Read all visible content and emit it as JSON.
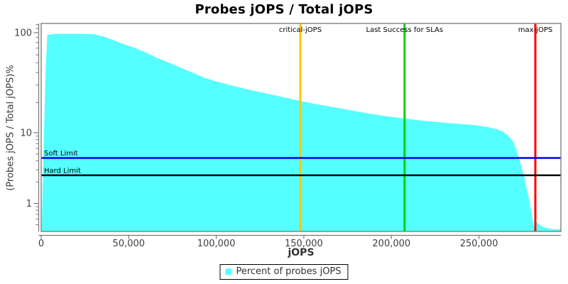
{
  "title": "Probes jOPS / Total jOPS",
  "chart_data": {
    "type": "area",
    "title": "Probes jOPS / Total jOPS",
    "xlabel": "jOPS",
    "ylabel": "(Probes jOPS / Total jOPS)%",
    "x_range": [
      0,
      296800
    ],
    "y_scale": "log",
    "y_range": [
      0.4,
      123
    ],
    "grid": false,
    "legend_position": "bottom",
    "x_ticks": [
      {
        "value": 0,
        "label": "0"
      },
      {
        "value": 50000,
        "label": "50,000"
      },
      {
        "value": 100000,
        "label": "100,000"
      },
      {
        "value": 150000,
        "label": "150,000"
      },
      {
        "value": 200000,
        "label": "200,000"
      },
      {
        "value": 250000,
        "label": "250,000"
      }
    ],
    "y_ticks": [
      {
        "value": 100,
        "label": "100"
      },
      {
        "value": 10,
        "label": "10"
      },
      {
        "value": 1,
        "label": "1"
      }
    ],
    "y_minor_ticks": [
      120,
      110,
      90,
      80,
      70,
      60,
      50,
      40,
      30,
      20,
      9,
      8,
      7,
      6,
      5,
      4,
      3,
      2,
      0.9,
      0.8,
      0.7,
      0.6,
      0.5
    ],
    "series": [
      {
        "name": "Percent of probes jOPS",
        "color": "#55FFFF",
        "points": [
          [
            300,
            0.45
          ],
          [
            1500,
            8
          ],
          [
            2500,
            40
          ],
          [
            3500,
            95
          ],
          [
            8000,
            97.5
          ],
          [
            20000,
            97.5
          ],
          [
            30000,
            96.5
          ],
          [
            36000,
            91
          ],
          [
            40000,
            86
          ],
          [
            46000,
            78
          ],
          [
            53000,
            71
          ],
          [
            60000,
            63
          ],
          [
            66000,
            56
          ],
          [
            73000,
            50
          ],
          [
            80000,
            44.5
          ],
          [
            87000,
            39.5
          ],
          [
            93000,
            35.5
          ],
          [
            100000,
            32.5
          ],
          [
            110000,
            29.3
          ],
          [
            120000,
            26.6
          ],
          [
            130000,
            24.4
          ],
          [
            140000,
            22.3
          ],
          [
            148000,
            20.8
          ],
          [
            158000,
            19.2
          ],
          [
            170000,
            17.6
          ],
          [
            185000,
            15.8
          ],
          [
            196000,
            14.7
          ],
          [
            207000,
            13.9
          ],
          [
            218000,
            13.2
          ],
          [
            230000,
            12.6
          ],
          [
            240000,
            12.2
          ],
          [
            248000,
            11.9
          ],
          [
            255000,
            11.4
          ],
          [
            260000,
            10.9
          ],
          [
            264000,
            10.2
          ],
          [
            267000,
            8.9
          ],
          [
            269500,
            7.6
          ],
          [
            271500,
            5.6
          ],
          [
            273000,
            4.2
          ],
          [
            274500,
            3.1
          ],
          [
            276000,
            2.3
          ],
          [
            277500,
            1.5
          ],
          [
            279000,
            1.0
          ],
          [
            280500,
            0.62
          ],
          [
            281500,
            0.47
          ],
          [
            282200,
            0.44
          ],
          [
            283000,
            0.55
          ],
          [
            284500,
            0.5
          ],
          [
            287000,
            0.46
          ],
          [
            290000,
            0.44
          ],
          [
            293000,
            0.43
          ],
          [
            296800,
            0.43
          ]
        ]
      }
    ],
    "vlines": [
      {
        "label": "critical-jOPS",
        "x": 148000,
        "color": "#FFC800"
      },
      {
        "label": "Last Success for SLAs",
        "x": 207500,
        "color": "#00D400"
      },
      {
        "label": "max-jOPS",
        "x": 282200,
        "color": "#FF0000"
      }
    ],
    "hlines": [
      {
        "label": "Soft Limit",
        "y": 4.4,
        "color": "#0000EE"
      },
      {
        "label": "Hard Limit",
        "y": 2.5,
        "color": "#000000"
      }
    ]
  },
  "legend": {
    "items": [
      {
        "label": "Percent of probes jOPS",
        "color": "#55FFFF"
      }
    ]
  }
}
